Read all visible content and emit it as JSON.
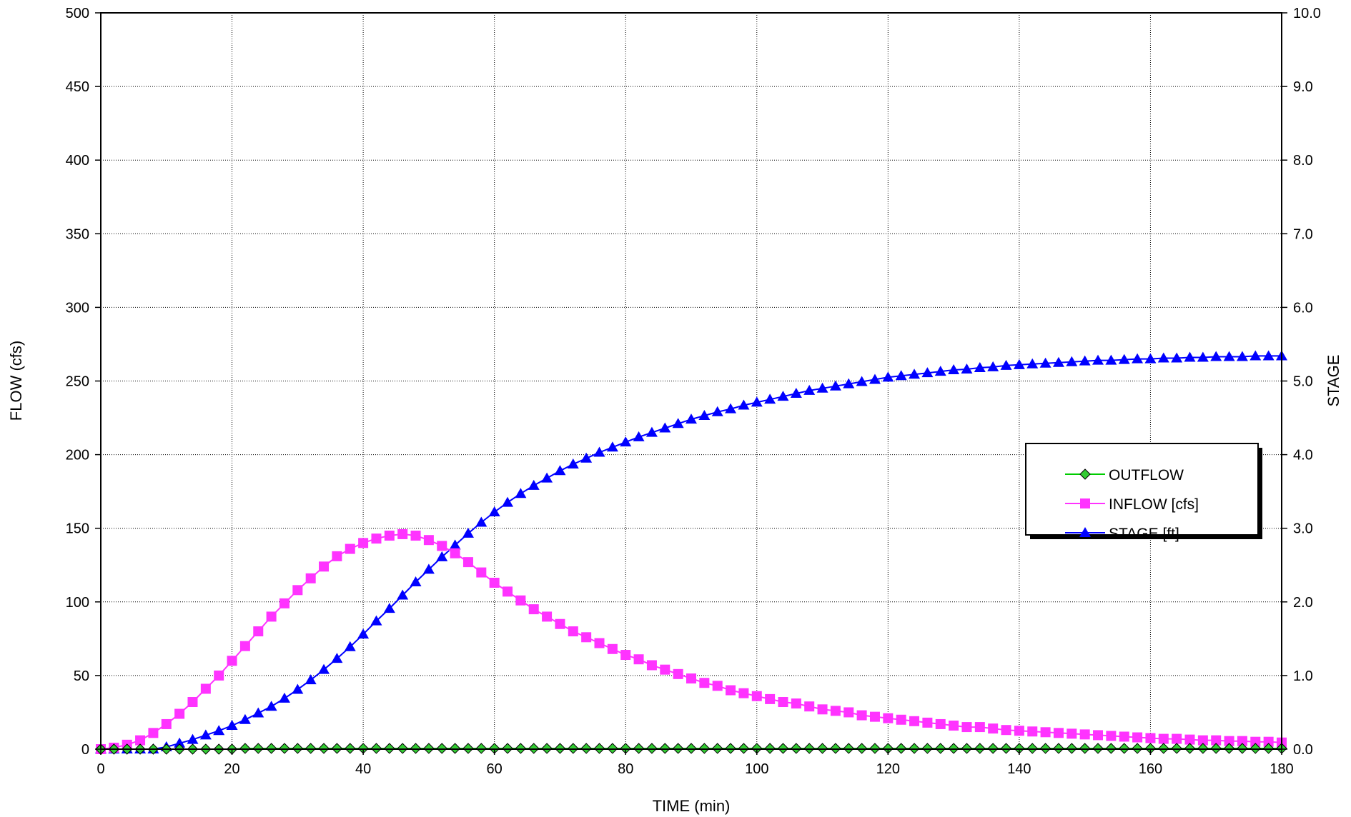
{
  "chart_data": {
    "type": "line",
    "title": "",
    "xlabel": "TIME (min)",
    "ylabel": "FLOW (cfs)",
    "y2label": "STAGE",
    "xlim": [
      0,
      180
    ],
    "ylim": [
      0,
      500
    ],
    "y2lim": [
      0.0,
      10.0
    ],
    "x_ticks": [
      "0",
      "20",
      "40",
      "60",
      "80",
      "100",
      "120",
      "140",
      "160",
      "180"
    ],
    "y_ticks": [
      "0",
      "50",
      "100",
      "150",
      "200",
      "250",
      "300",
      "350",
      "400",
      "450",
      "500"
    ],
    "y2_ticks": [
      "0.0",
      "1.0",
      "2.0",
      "3.0",
      "4.0",
      "5.0",
      "6.0",
      "7.0",
      "8.0",
      "9.0",
      "10.0"
    ],
    "grid": true,
    "legend_position": "right-middle",
    "x": [
      0,
      2,
      4,
      6,
      8,
      10,
      12,
      14,
      16,
      18,
      20,
      22,
      24,
      26,
      28,
      30,
      32,
      34,
      36,
      38,
      40,
      42,
      44,
      46,
      48,
      50,
      52,
      54,
      56,
      58,
      60,
      62,
      64,
      66,
      68,
      70,
      72,
      74,
      76,
      78,
      80,
      82,
      84,
      86,
      88,
      90,
      92,
      94,
      96,
      98,
      100,
      102,
      104,
      106,
      108,
      110,
      112,
      114,
      116,
      118,
      120,
      122,
      124,
      126,
      128,
      130,
      132,
      134,
      136,
      138,
      140,
      142,
      144,
      146,
      148,
      150,
      152,
      154,
      156,
      158,
      160,
      162,
      164,
      166,
      168,
      170,
      172,
      174,
      176,
      178,
      180
    ],
    "series": [
      {
        "name": "OUTFLOW",
        "axis": "left",
        "color": "#00cc00",
        "marker": "diamond",
        "marker_fill": "#33cc33",
        "values": [
          0,
          0,
          0,
          0,
          0,
          0,
          0,
          0,
          0,
          0,
          0,
          0.5,
          0.5,
          0.5,
          0.5,
          0.5,
          0.5,
          0.5,
          0.5,
          0.5,
          0.5,
          0.5,
          0.5,
          0.5,
          0.5,
          0.5,
          0.5,
          0.5,
          0.5,
          0.5,
          0.5,
          0.5,
          0.5,
          0.5,
          0.5,
          0.5,
          0.5,
          0.5,
          0.5,
          0.5,
          0.5,
          0.5,
          0.5,
          0.5,
          0.5,
          0.5,
          0.5,
          0.5,
          0.5,
          0.5,
          0.5,
          0.5,
          0.5,
          0.5,
          0.5,
          0.5,
          0.5,
          0.5,
          0.5,
          0.5,
          0.5,
          0.5,
          0.5,
          0.5,
          0.5,
          0.5,
          0.5,
          0.5,
          0.5,
          0.5,
          0.5,
          0.5,
          0.5,
          0.5,
          0.5,
          0.5,
          0.5,
          0.5,
          0.5,
          0.5,
          0.5,
          0.5,
          0.5,
          0.5,
          0.5,
          0.5,
          0.5,
          0.5,
          0.5,
          0.5,
          0.5
        ]
      },
      {
        "name": "INFLOW [cfs]",
        "axis": "left",
        "color": "#ff33ff",
        "marker": "square",
        "marker_fill": "#ff33ff",
        "values": [
          0,
          1,
          3,
          6,
          11,
          17,
          24,
          32,
          41,
          50,
          60,
          70,
          80,
          90,
          99,
          108,
          116,
          124,
          131,
          136,
          140,
          143,
          145,
          146,
          145,
          142,
          138,
          133,
          127,
          120,
          113,
          107,
          101,
          95,
          90,
          85,
          80,
          76,
          72,
          68,
          64,
          61,
          57,
          54,
          51,
          48,
          45,
          43,
          40,
          38,
          36,
          34,
          32,
          31,
          29,
          27,
          26,
          25,
          23,
          22,
          21,
          20,
          19,
          18,
          17,
          16,
          15,
          15,
          14,
          13,
          12.5,
          12,
          11.5,
          11,
          10.5,
          10,
          9.5,
          9,
          8.5,
          8,
          7.5,
          7,
          7,
          6.5,
          6,
          6,
          5.5,
          5.5,
          5,
          5,
          4.5
        ]
      },
      {
        "name": "STAGE [ft]",
        "axis": "right",
        "color": "#0000ff",
        "marker": "triangle",
        "marker_fill": "#0000ff",
        "values": [
          0,
          0,
          0,
          0,
          0,
          0.03,
          0.08,
          0.13,
          0.19,
          0.25,
          0.32,
          0.4,
          0.49,
          0.58,
          0.69,
          0.81,
          0.94,
          1.08,
          1.23,
          1.39,
          1.56,
          1.74,
          1.91,
          2.09,
          2.27,
          2.44,
          2.61,
          2.77,
          2.93,
          3.08,
          3.22,
          3.35,
          3.47,
          3.58,
          3.68,
          3.78,
          3.87,
          3.95,
          4.03,
          4.1,
          4.17,
          4.24,
          4.3,
          4.36,
          4.42,
          4.48,
          4.53,
          4.58,
          4.62,
          4.67,
          4.71,
          4.75,
          4.79,
          4.83,
          4.87,
          4.9,
          4.93,
          4.96,
          4.99,
          5.02,
          5.05,
          5.07,
          5.09,
          5.11,
          5.13,
          5.15,
          5.16,
          5.18,
          5.19,
          5.21,
          5.22,
          5.23,
          5.24,
          5.25,
          5.26,
          5.27,
          5.28,
          5.28,
          5.29,
          5.3,
          5.3,
          5.31,
          5.31,
          5.32,
          5.32,
          5.33,
          5.33,
          5.33,
          5.34,
          5.34,
          5.34
        ]
      }
    ]
  }
}
